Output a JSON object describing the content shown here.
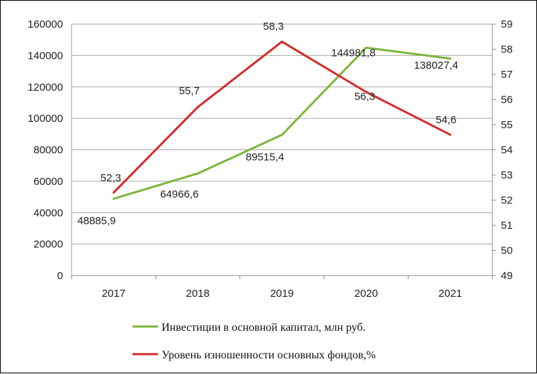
{
  "chart_data": {
    "type": "line",
    "categories": [
      "2017",
      "2018",
      "2019",
      "2020",
      "2021"
    ],
    "y_left": {
      "min": 0,
      "max": 160000,
      "step": 20000,
      "ticks": [
        "0",
        "20000",
        "40000",
        "60000",
        "80000",
        "100000",
        "120000",
        "140000",
        "160000"
      ]
    },
    "y_right": {
      "min": 49,
      "max": 59,
      "step": 1,
      "ticks": [
        "49",
        "50",
        "51",
        "52",
        "53",
        "54",
        "55",
        "56",
        "57",
        "58",
        "59"
      ]
    },
    "grid": true,
    "legend_position": "bottom",
    "series": [
      {
        "name": "Инвестиции в основной капитал, млн руб.",
        "axis": "left",
        "color": "#7db53d",
        "values": [
          48885.9,
          64966.6,
          89515.4,
          144981.8,
          138027.4
        ],
        "labels": [
          "48885,9",
          "64966,6",
          "89515,4",
          "144981,8",
          "138027,4"
        ]
      },
      {
        "name": "Уровень изношенности основных фондов,%",
        "axis": "right",
        "color": "#d42a2a",
        "values": [
          52.3,
          55.7,
          58.3,
          56.3,
          54.6
        ],
        "labels": [
          "52,3",
          "55,7",
          "58,3",
          "56,3",
          "54,6"
        ]
      }
    ]
  }
}
